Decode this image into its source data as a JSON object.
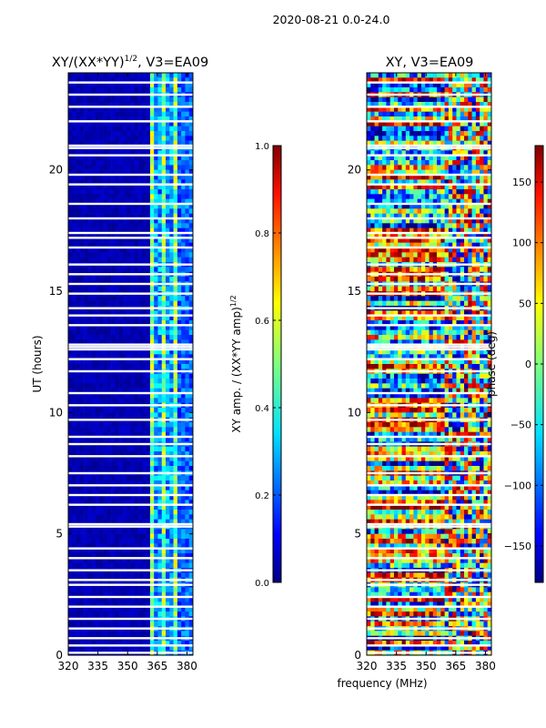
{
  "suptitle": "2020-08-21 0.0-24.0",
  "xlabel_shared": "frequency (MHz)",
  "chart_data": [
    {
      "type": "heatmap",
      "title_main": "XY/(XX*YY)",
      "title_exp": "1/2",
      "title_rest": ", V3=EA09",
      "ylabel": "UT (hours)",
      "xlim": [
        320,
        383
      ],
      "ylim": [
        0,
        24
      ],
      "xticks": [
        320,
        335,
        350,
        365,
        380
      ],
      "yticks": [
        0,
        5,
        10,
        15,
        20
      ],
      "colorbar": {
        "label_main": "XY amp. / (XX*YY amp)",
        "label_exp": "1/2",
        "range": [
          0.0,
          1.0
        ],
        "ticks": [
          "0.0",
          "0.2",
          "0.4",
          "0.6",
          "0.8",
          "1.0"
        ],
        "tick_values": [
          0.0,
          0.2,
          0.4,
          0.6,
          0.8,
          1.0
        ]
      },
      "colormap": [
        "#00007f",
        "#0000ff",
        "#007fff",
        "#00ffff",
        "#7fff7f",
        "#ffff00",
        "#ff7f00",
        "#ff0000",
        "#7f0000"
      ]
    },
    {
      "type": "heatmap",
      "title_main": "XY, V3=EA09",
      "ylabel": "",
      "xlim": [
        320,
        383
      ],
      "ylim": [
        0,
        24
      ],
      "xticks": [
        320,
        335,
        350,
        365,
        380
      ],
      "yticks": [
        0,
        5,
        10,
        15,
        20
      ],
      "colorbar": {
        "label_main": "phase (deg)",
        "range": [
          -180,
          180
        ],
        "ticks": [
          "−150",
          "−100",
          "−50",
          "0",
          "50",
          "100",
          "150"
        ],
        "tick_values": [
          -150,
          -100,
          -50,
          0,
          50,
          100,
          150
        ]
      },
      "colormap": [
        "#00007f",
        "#0000ff",
        "#007fff",
        "#00ffff",
        "#7fff7f",
        "#ffff00",
        "#ff7f00",
        "#ff0000",
        "#7f0000"
      ]
    }
  ]
}
